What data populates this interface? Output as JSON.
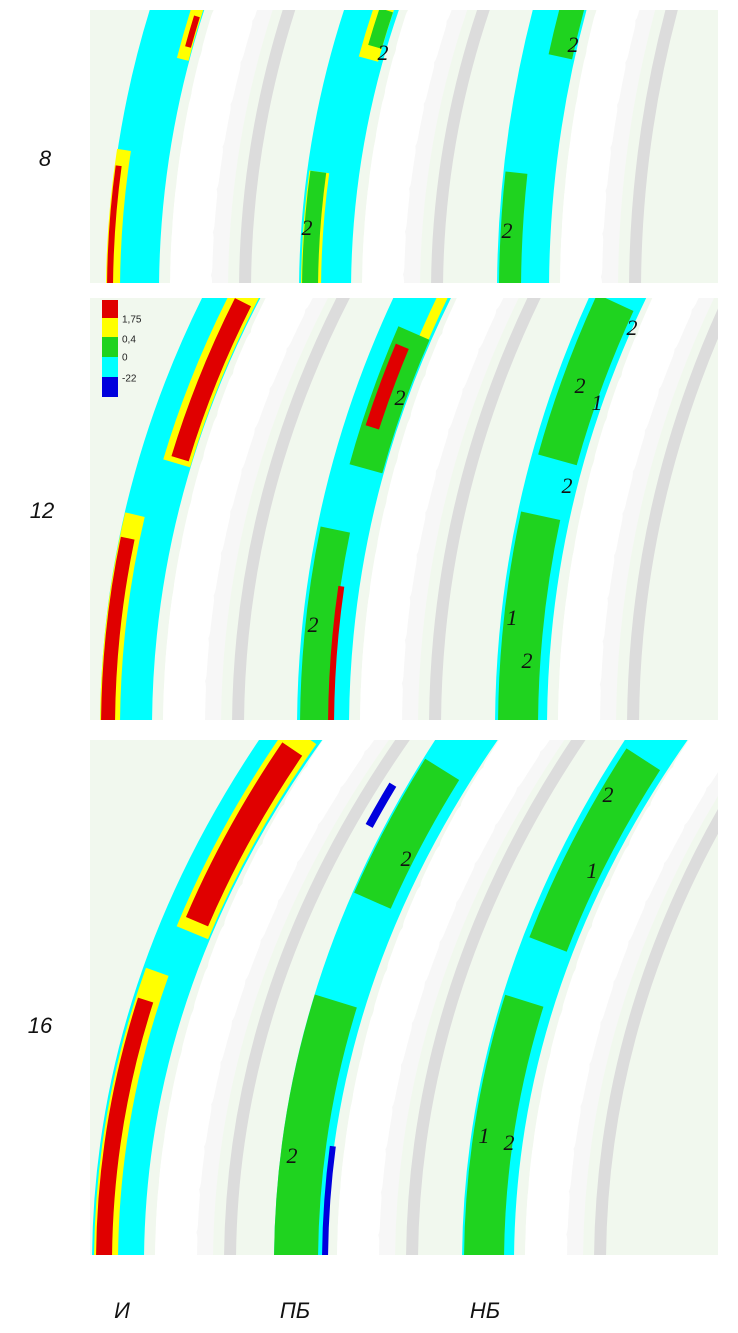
{
  "rows": [
    {
      "label": "8",
      "annotations": [
        "2",
        "2",
        "2",
        "2"
      ]
    },
    {
      "label": "12",
      "annotations": [
        "2",
        "2",
        "2",
        "2",
        "1",
        "2",
        "1",
        "2"
      ]
    },
    {
      "label": "16",
      "annotations": [
        "2",
        "2",
        "2",
        "1",
        "1",
        "2"
      ]
    }
  ],
  "columns": [
    "И",
    "ПБ",
    "НБ"
  ],
  "legend": {
    "labels": [
      "1,75",
      "0,4",
      "0",
      "-22"
    ]
  }
}
